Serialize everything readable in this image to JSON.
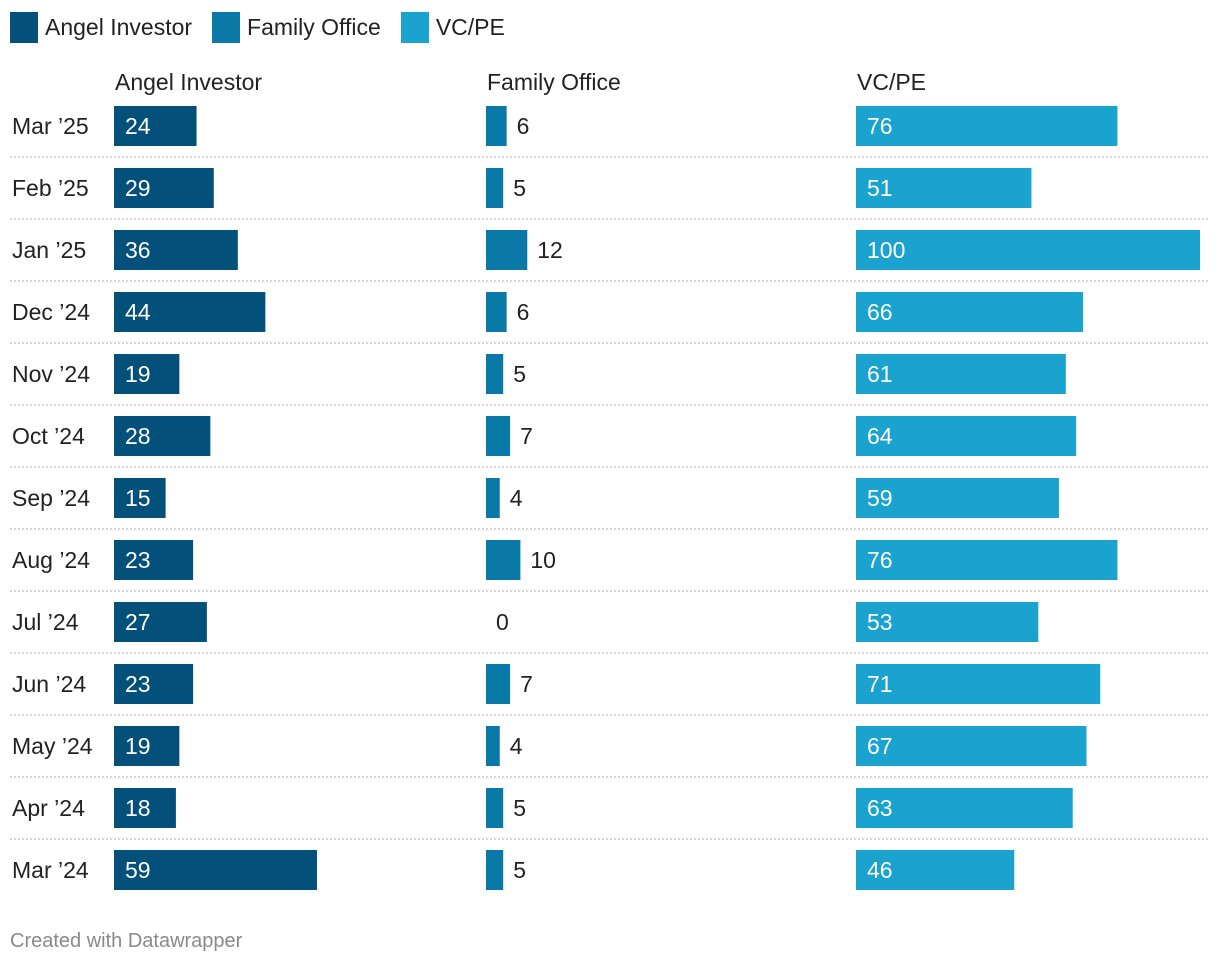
{
  "chart_data": {
    "type": "bar",
    "orientation": "horizontal",
    "layout": "small-multiples",
    "categories": [
      "Mar ’25",
      "Feb ’25",
      "Jan ’25",
      "Dec ’24",
      "Nov ’24",
      "Oct ’24",
      "Sep ’24",
      "Aug ’24",
      "Jul ’24",
      "Jun ’24",
      "May ’24",
      "Apr ’24",
      "Mar ’24"
    ],
    "series": [
      {
        "name": "Angel Investor",
        "color": "#03507a",
        "values": [
          24,
          29,
          36,
          44,
          19,
          28,
          15,
          23,
          27,
          23,
          19,
          18,
          59
        ]
      },
      {
        "name": "Family Office",
        "color": "#0b79a8",
        "values": [
          6,
          5,
          12,
          6,
          5,
          7,
          4,
          10,
          0,
          7,
          4,
          5,
          5
        ]
      },
      {
        "name": "VC/PE",
        "color": "#1ba3d0",
        "values": [
          76,
          51,
          100,
          66,
          61,
          64,
          59,
          76,
          53,
          71,
          67,
          63,
          46
        ]
      }
    ],
    "xlim": [
      0,
      100
    ],
    "legend_position": "top-left",
    "grid": false
  },
  "legend": [
    {
      "label": "Angel Investor",
      "color": "#03507a"
    },
    {
      "label": "Family Office",
      "color": "#0b79a8"
    },
    {
      "label": "VC/PE",
      "color": "#1ba3d0"
    }
  ],
  "footer": "Created with Datawrapper"
}
